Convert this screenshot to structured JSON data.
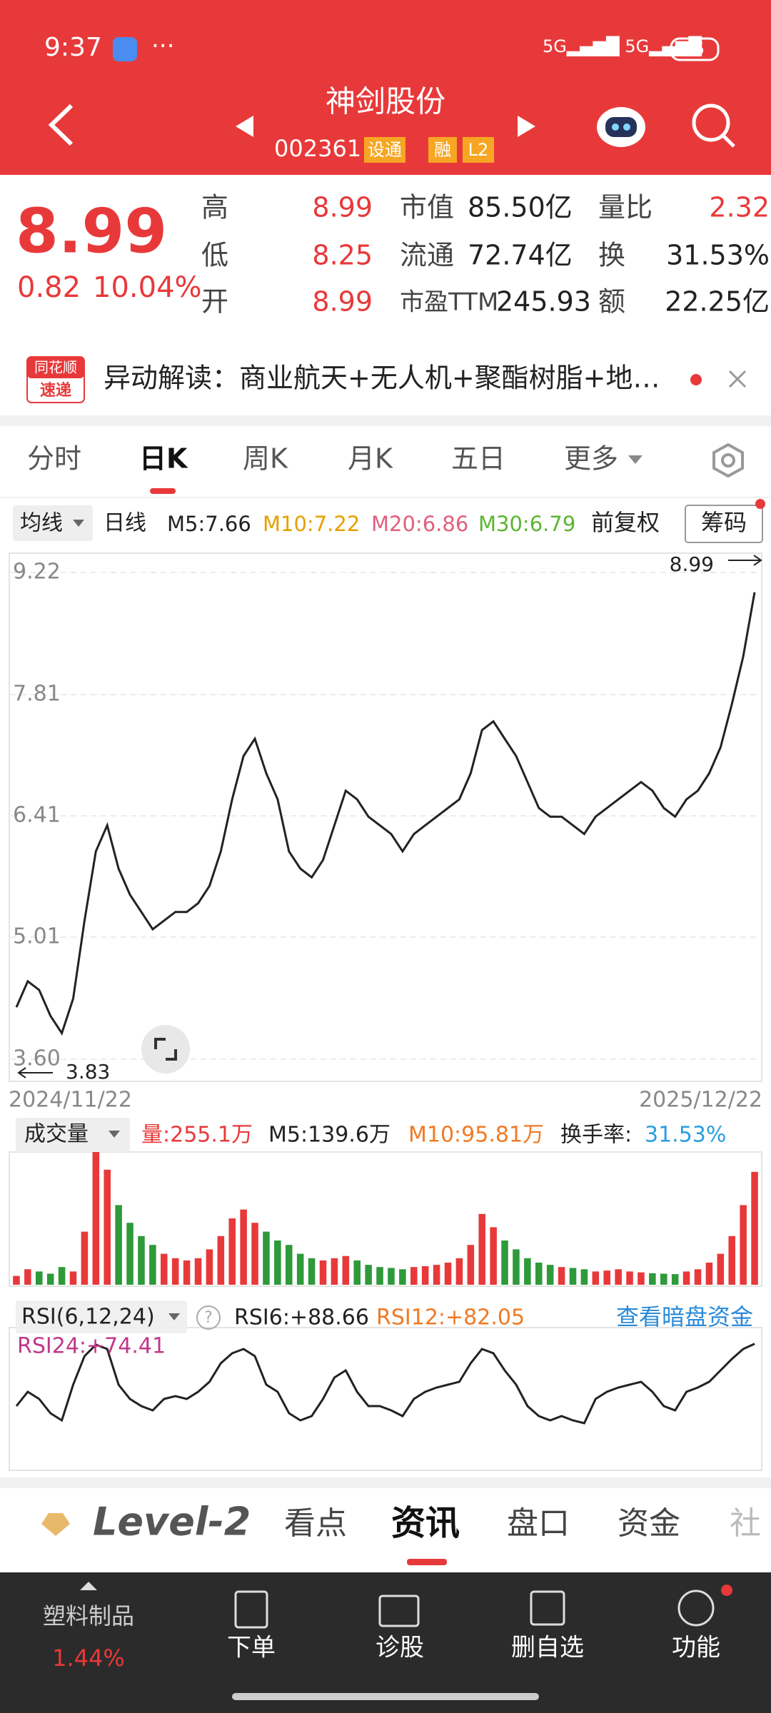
{
  "status": {
    "time": "9:37",
    "battery": "35"
  },
  "header": {
    "title": "神剑股份",
    "code": "002361",
    "tags": [
      "设通",
      "融",
      "L2"
    ]
  },
  "quote": {
    "price": "8.99",
    "change": "0.82",
    "percent": "10.04%",
    "stats": [
      {
        "label": "高",
        "value": "8.99"
      },
      {
        "label": "低",
        "value": "8.25"
      },
      {
        "label": "开",
        "value": "8.99"
      },
      {
        "label": "市值",
        "value": "85.50亿"
      },
      {
        "label": "流通",
        "value": "72.74亿"
      },
      {
        "label": "市盈TTM",
        "value": "245.93"
      },
      {
        "label": "量比",
        "value": "2.32"
      },
      {
        "label": "换",
        "value": "31.53%"
      },
      {
        "label": "额",
        "value": "22.25亿"
      }
    ]
  },
  "alert": {
    "badge": [
      "同花顺",
      "速递"
    ],
    "text": "异动解读：商业航天+无人机+聚酯树脂+地…"
  },
  "tabs": [
    "分时",
    "日K",
    "周K",
    "月K",
    "五日",
    "更多"
  ],
  "ma_row": {
    "selector": "均线",
    "period": "日线",
    "m5": "M5:7.66",
    "m10": "M10:7.22",
    "m20": "M20:6.86",
    "m30": "M30:6.79",
    "adjust": "前复权",
    "chips": "筹码"
  },
  "kline": {
    "ylim": [
      3.6,
      9.22
    ],
    "yticks": [
      9.22,
      7.81,
      6.41,
      5.01,
      {
        "value": 3.6,
        "label": "3.60"
      }
    ],
    "high": 8.99,
    "low": 3.83,
    "start_date": "2024/11/22",
    "end_date": "2025/12/22",
    "close": [
      4.2,
      4.5,
      4.4,
      4.1,
      3.9,
      4.3,
      5.2,
      6.0,
      6.3,
      5.8,
      5.5,
      5.3,
      5.1,
      5.2,
      5.3,
      5.3,
      5.4,
      5.6,
      6.0,
      6.6,
      7.1,
      7.3,
      6.9,
      6.6,
      6.0,
      5.8,
      5.7,
      5.9,
      6.3,
      6.7,
      6.6,
      6.4,
      6.3,
      6.2,
      6.0,
      6.2,
      6.3,
      6.4,
      6.5,
      6.6,
      6.9,
      7.4,
      7.5,
      7.3,
      7.1,
      6.8,
      6.5,
      6.4,
      6.4,
      6.3,
      6.2,
      6.4,
      6.5,
      6.6,
      6.7,
      6.8,
      6.7,
      6.5,
      6.4,
      6.6,
      6.7,
      6.9,
      7.2,
      7.7,
      8.25,
      8.99
    ],
    "color": "#222222"
  },
  "volume": {
    "selector": "成交量",
    "current": "量:255.1万",
    "m5": "M5:139.6万",
    "m10": "M10:95.81万",
    "turnover_label": "换手率:",
    "turnover": "31.53%",
    "ylim": [
      0,
      300
    ],
    "values": [
      20,
      35,
      30,
      25,
      40,
      30,
      120,
      300,
      260,
      180,
      140,
      110,
      90,
      70,
      60,
      55,
      60,
      80,
      110,
      150,
      170,
      140,
      120,
      100,
      90,
      70,
      60,
      55,
      60,
      65,
      55,
      45,
      40,
      38,
      35,
      40,
      42,
      45,
      50,
      60,
      90,
      160,
      130,
      100,
      80,
      60,
      50,
      45,
      40,
      38,
      35,
      30,
      32,
      35,
      30,
      28,
      26,
      25,
      24,
      30,
      35,
      50,
      70,
      110,
      180,
      255.1
    ]
  },
  "rsi": {
    "selector": "RSI(6,12,24)",
    "rsi6": "RSI6:+88.66",
    "rsi12": "RSI12:+82.05",
    "rsi24": "RSI24:+74.41",
    "link": "查看暗盘资金",
    "ylim": [
      0,
      100
    ],
    "color": "#222222",
    "values": [
      45,
      55,
      50,
      40,
      35,
      60,
      80,
      88,
      85,
      60,
      50,
      45,
      42,
      50,
      52,
      50,
      55,
      62,
      75,
      82,
      85,
      80,
      60,
      55,
      40,
      35,
      38,
      50,
      65,
      70,
      55,
      45,
      45,
      42,
      38,
      50,
      55,
      58,
      60,
      62,
      75,
      85,
      82,
      70,
      60,
      45,
      38,
      35,
      38,
      35,
      33,
      50,
      55,
      58,
      60,
      62,
      55,
      45,
      42,
      55,
      58,
      62,
      70,
      78,
      85,
      88.66
    ]
  },
  "bottom_tabs": [
    "Level-2",
    "看点",
    "资讯",
    "盘口",
    "资金",
    "社"
  ],
  "bottom_bar": {
    "sector": "塑料制品",
    "sector_change": "1.44%",
    "actions": [
      "下单",
      "诊股",
      "删自选",
      "功能"
    ]
  }
}
